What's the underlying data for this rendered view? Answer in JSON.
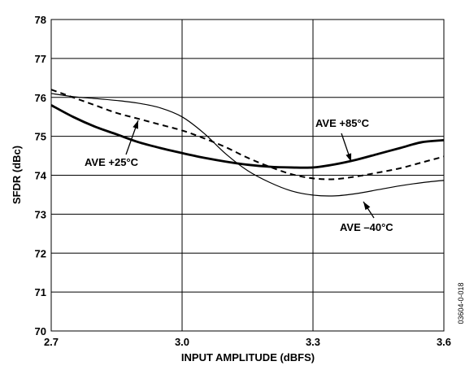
{
  "chart_data": {
    "type": "line",
    "title": "",
    "xlabel": "INPUT AMPLITUDE (dBFS)",
    "ylabel": "SFDR (dBc)",
    "xlim": [
      2.7,
      3.6
    ],
    "ylim": [
      70,
      78
    ],
    "xticks": [
      2.7,
      3.0,
      3.3,
      3.6
    ],
    "xtick_labels": [
      "2.7",
      "3.0",
      "3.3",
      "3.6"
    ],
    "yticks": [
      70,
      71,
      72,
      73,
      74,
      75,
      76,
      77,
      78
    ],
    "ytick_labels": [
      "70",
      "71",
      "72",
      "73",
      "74",
      "75",
      "76",
      "77",
      "78"
    ],
    "grid": true,
    "series": [
      {
        "name": "AVE +85°C",
        "style": "thick",
        "x": [
          2.7,
          2.75,
          2.8,
          2.85,
          2.9,
          2.95,
          3.0,
          3.05,
          3.1,
          3.15,
          3.2,
          3.25,
          3.3,
          3.35,
          3.4,
          3.45,
          3.5,
          3.55,
          3.6
        ],
        "y": [
          75.8,
          75.5,
          75.25,
          75.05,
          74.85,
          74.7,
          74.57,
          74.45,
          74.35,
          74.27,
          74.22,
          74.2,
          74.2,
          74.28,
          74.4,
          74.55,
          74.7,
          74.85,
          74.9
        ]
      },
      {
        "name": "AVE +25°C",
        "style": "dashed",
        "x": [
          2.7,
          2.75,
          2.8,
          2.85,
          2.9,
          2.95,
          3.0,
          3.05,
          3.1,
          3.15,
          3.2,
          3.25,
          3.3,
          3.35,
          3.4,
          3.45,
          3.5,
          3.55,
          3.6
        ],
        "y": [
          76.2,
          76.0,
          75.8,
          75.6,
          75.45,
          75.3,
          75.15,
          74.95,
          74.72,
          74.45,
          74.22,
          74.03,
          73.92,
          73.9,
          73.97,
          74.07,
          74.18,
          74.33,
          74.48
        ]
      },
      {
        "name": "AVE –40°C",
        "style": "thin",
        "x": [
          2.7,
          2.75,
          2.8,
          2.85,
          2.9,
          2.95,
          3.0,
          3.05,
          3.1,
          3.15,
          3.2,
          3.25,
          3.3,
          3.35,
          3.4,
          3.45,
          3.5,
          3.55,
          3.6
        ],
        "y": [
          76.1,
          76.02,
          75.97,
          75.92,
          75.85,
          75.73,
          75.5,
          75.08,
          74.55,
          74.12,
          73.82,
          73.6,
          73.49,
          73.47,
          73.53,
          73.63,
          73.73,
          73.81,
          73.87
        ]
      }
    ],
    "annotations": [
      {
        "text": "AVE +85°C",
        "series": "AVE +85°C"
      },
      {
        "text": "AVE +25°C",
        "series": "AVE +25°C"
      },
      {
        "text": "AVE –40°C",
        "series": "AVE –40°C"
      }
    ],
    "figure_number": "03604-0-018"
  }
}
